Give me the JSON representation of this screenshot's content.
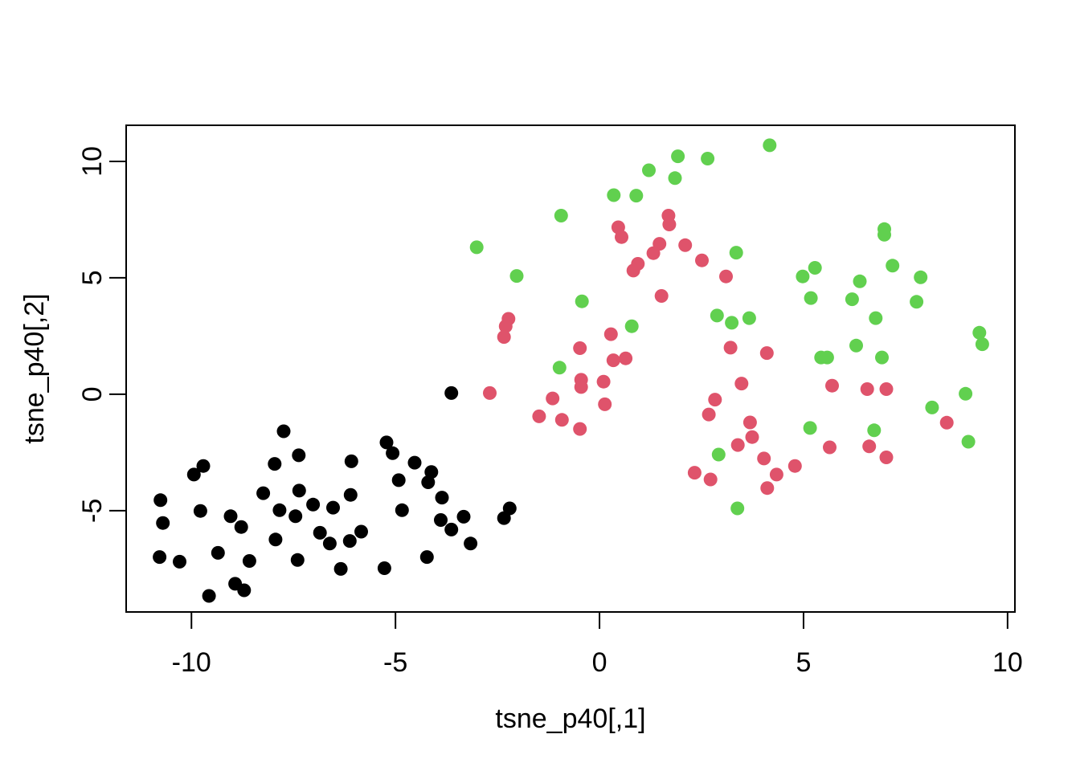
{
  "figure": {
    "background": "#FFFFFF",
    "foreground": "#000000"
  },
  "chart_data": {
    "type": "scatter",
    "title": "",
    "xlabel": "tsne_p40[,1]",
    "ylabel": "tsne_p40[,2]",
    "xlim": [
      -11.6,
      10.18
    ],
    "ylim": [
      -9.35,
      11.55
    ],
    "grid": false,
    "legend": "none",
    "x_ticks": [
      {
        "value": -10,
        "label": "-10"
      },
      {
        "value": -5,
        "label": "-5"
      },
      {
        "value": 0,
        "label": "0"
      },
      {
        "value": 5,
        "label": "5"
      },
      {
        "value": 10,
        "label": "10"
      }
    ],
    "y_ticks": [
      {
        "value": -5,
        "label": "-5"
      },
      {
        "value": 0,
        "label": "0"
      },
      {
        "value": 5,
        "label": "5"
      },
      {
        "value": 10,
        "label": "10"
      }
    ],
    "series": [
      {
        "name": "cluster-black",
        "color": "#000000",
        "points": [
          [
            -7.74,
            -1.59
          ],
          [
            -7.37,
            -2.62
          ],
          [
            -7.96,
            -2.99
          ],
          [
            -9.71,
            -3.08
          ],
          [
            -9.94,
            -3.45
          ],
          [
            -10.76,
            -4.55
          ],
          [
            -8.24,
            -4.25
          ],
          [
            -7.36,
            -4.14
          ],
          [
            -7.02,
            -4.74
          ],
          [
            -6.53,
            -4.87
          ],
          [
            -9.78,
            -5.01
          ],
          [
            -7.84,
            -4.98
          ],
          [
            -7.45,
            -5.24
          ],
          [
            -9.04,
            -5.24
          ],
          [
            -10.7,
            -5.53
          ],
          [
            -8.78,
            -5.7
          ],
          [
            -6.85,
            -5.95
          ],
          [
            -6.61,
            -6.41
          ],
          [
            -7.94,
            -6.24
          ],
          [
            -10.78,
            -6.99
          ],
          [
            -10.29,
            -7.19
          ],
          [
            -9.35,
            -6.81
          ],
          [
            -8.58,
            -7.16
          ],
          [
            -7.4,
            -7.12
          ],
          [
            -6.34,
            -7.5
          ],
          [
            -8.93,
            -8.14
          ],
          [
            -8.71,
            -8.42
          ],
          [
            -9.57,
            -8.66
          ],
          [
            -3.63,
            0.05
          ],
          [
            -5.22,
            -2.07
          ],
          [
            -5.07,
            -2.53
          ],
          [
            -6.08,
            -2.88
          ],
          [
            -4.53,
            -2.94
          ],
          [
            -4.12,
            -3.34
          ],
          [
            -4.2,
            -3.78
          ],
          [
            -4.92,
            -3.69
          ],
          [
            -6.1,
            -4.32
          ],
          [
            -3.86,
            -4.44
          ],
          [
            -4.84,
            -4.98
          ],
          [
            -2.2,
            -4.9
          ],
          [
            -2.34,
            -5.32
          ],
          [
            -3.89,
            -5.4
          ],
          [
            -3.33,
            -5.26
          ],
          [
            -3.63,
            -5.81
          ],
          [
            -5.84,
            -5.9
          ],
          [
            -6.12,
            -6.3
          ],
          [
            -3.16,
            -6.41
          ],
          [
            -4.23,
            -6.99
          ],
          [
            -5.27,
            -7.47
          ]
        ]
      },
      {
        "name": "cluster-red",
        "color": "#DF536B",
        "points": [
          [
            -2.69,
            0.05
          ],
          [
            -1.48,
            -0.95
          ],
          [
            0.46,
            7.17
          ],
          [
            0.54,
            6.75
          ],
          [
            1.69,
            7.67
          ],
          [
            1.71,
            7.29
          ],
          [
            1.47,
            6.46
          ],
          [
            2.1,
            6.4
          ],
          [
            1.32,
            6.06
          ],
          [
            2.51,
            5.75
          ],
          [
            0.94,
            5.6
          ],
          [
            0.83,
            5.31
          ],
          [
            3.1,
            5.06
          ],
          [
            1.52,
            4.22
          ],
          [
            -2.23,
            3.24
          ],
          [
            -2.3,
            2.92
          ],
          [
            -2.34,
            2.46
          ],
          [
            0.28,
            2.58
          ],
          [
            -0.48,
            1.98
          ],
          [
            0.34,
            1.46
          ],
          [
            0.64,
            1.54
          ],
          [
            -0.45,
            0.62
          ],
          [
            -0.45,
            0.31
          ],
          [
            0.1,
            0.54
          ],
          [
            -1.15,
            -0.18
          ],
          [
            0.13,
            -0.43
          ],
          [
            -0.92,
            -1.1
          ],
          [
            -0.48,
            -1.49
          ],
          [
            3.21,
            2.0
          ],
          [
            4.1,
            1.77
          ],
          [
            3.48,
            0.46
          ],
          [
            2.83,
            -0.23
          ],
          [
            2.68,
            -0.87
          ],
          [
            3.69,
            -1.21
          ],
          [
            3.74,
            -1.84
          ],
          [
            3.39,
            -2.18
          ],
          [
            4.03,
            -2.76
          ],
          [
            5.7,
            0.37
          ],
          [
            6.56,
            0.22
          ],
          [
            7.03,
            0.22
          ],
          [
            8.51,
            -1.22
          ],
          [
            5.64,
            -2.28
          ],
          [
            6.61,
            -2.24
          ],
          [
            7.03,
            -2.71
          ],
          [
            4.79,
            -3.08
          ],
          [
            2.33,
            -3.37
          ],
          [
            4.34,
            -3.45
          ],
          [
            2.72,
            -3.66
          ],
          [
            4.11,
            -4.03
          ]
        ]
      },
      {
        "name": "cluster-green",
        "color": "#61D04F",
        "points": [
          [
            0.35,
            8.55
          ],
          [
            -0.94,
            7.67
          ],
          [
            -3.01,
            6.31
          ],
          [
            -2.03,
            5.08
          ],
          [
            -0.43,
            3.99
          ],
          [
            4.17,
            10.69
          ],
          [
            1.92,
            10.22
          ],
          [
            2.65,
            10.12
          ],
          [
            1.21,
            9.62
          ],
          [
            1.85,
            9.28
          ],
          [
            0.9,
            8.53
          ],
          [
            3.35,
            6.08
          ],
          [
            -0.98,
            1.14
          ],
          [
            2.88,
            3.38
          ],
          [
            3.24,
            3.07
          ],
          [
            3.67,
            3.27
          ],
          [
            0.79,
            2.92
          ],
          [
            2.92,
            -2.59
          ],
          [
            6.98,
            7.09
          ],
          [
            6.98,
            6.85
          ],
          [
            5.28,
            5.43
          ],
          [
            4.98,
            5.06
          ],
          [
            7.18,
            5.52
          ],
          [
            6.38,
            4.85
          ],
          [
            7.87,
            5.02
          ],
          [
            5.18,
            4.13
          ],
          [
            6.19,
            4.08
          ],
          [
            7.77,
            3.97
          ],
          [
            6.77,
            3.27
          ],
          [
            9.31,
            2.64
          ],
          [
            9.38,
            2.15
          ],
          [
            6.29,
            2.09
          ],
          [
            5.43,
            1.58
          ],
          [
            5.58,
            1.58
          ],
          [
            6.92,
            1.58
          ],
          [
            8.97,
            0.02
          ],
          [
            8.15,
            -0.57
          ],
          [
            5.16,
            -1.45
          ],
          [
            6.73,
            -1.55
          ],
          [
            9.04,
            -2.04
          ],
          [
            3.38,
            -4.9
          ]
        ]
      }
    ]
  }
}
